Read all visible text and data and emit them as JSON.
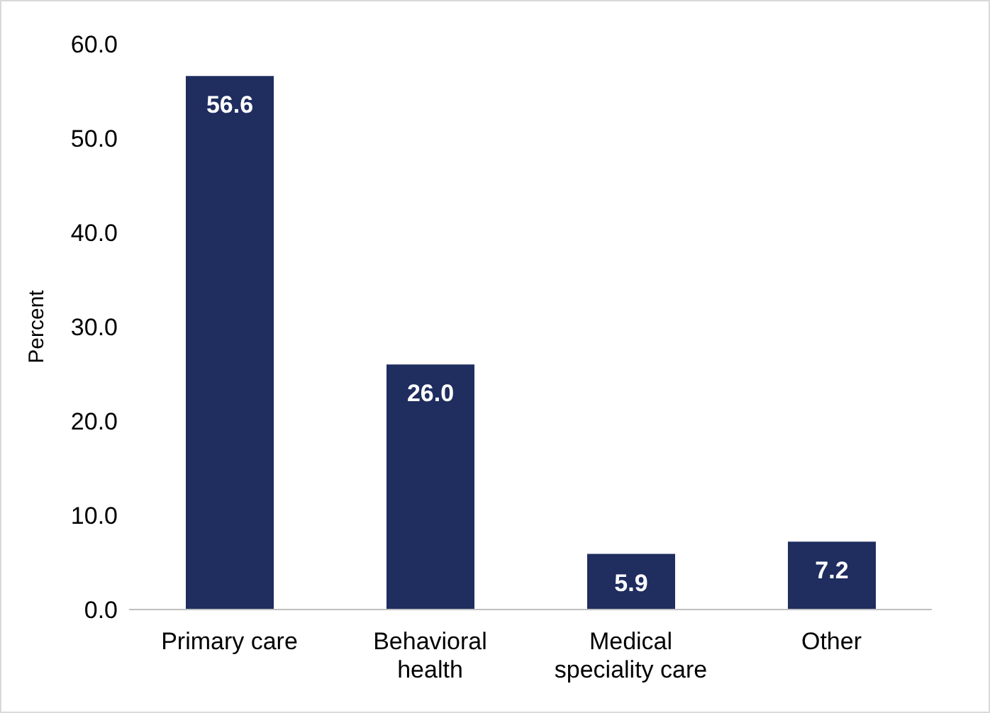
{
  "chart_data": {
    "type": "bar",
    "ylabel": "Percent",
    "categories": [
      "Primary care",
      "Behavioral health",
      "Medical speciality care",
      "Other"
    ],
    "values": [
      56.6,
      26.0,
      5.9,
      7.2
    ],
    "color": "#1f2d5f",
    "value_labels": [
      "56.6",
      "26.0",
      "5.9",
      "7.2"
    ],
    "ylim": [
      0,
      60
    ],
    "yticks": [
      {
        "value": 0,
        "label": "0.0"
      },
      {
        "value": 10,
        "label": "10.0"
      },
      {
        "value": 20,
        "label": "20.0"
      },
      {
        "value": 30,
        "label": "30.0"
      },
      {
        "value": 40,
        "label": "40.0"
      },
      {
        "value": 50,
        "label": "50.0"
      },
      {
        "value": 60,
        "label": "60.0"
      }
    ],
    "grid": false,
    "legend": false
  }
}
